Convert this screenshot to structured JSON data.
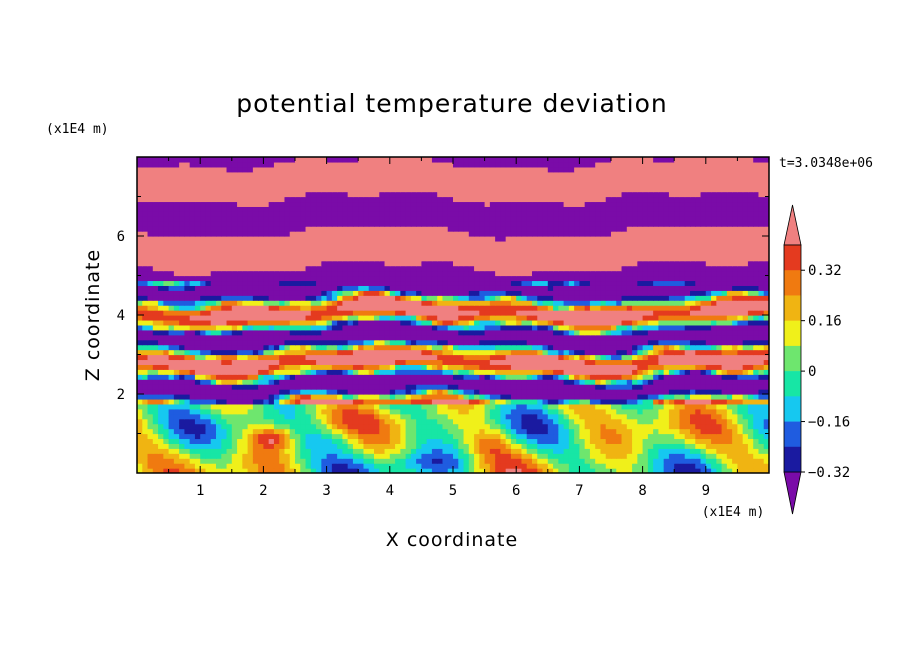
{
  "chart_data": {
    "type": "heatmap",
    "title": "potential temperature deviation",
    "xlabel": "X coordinate",
    "ylabel": "Z coordinate",
    "x_unit": "(x1E4 m)",
    "y_unit": "(x1E4 m)",
    "time_label": "t=3.0348e+06",
    "xlim": [
      0,
      10
    ],
    "ylim": [
      0,
      8
    ],
    "x_ticks": [
      "1",
      "2",
      "3",
      "4",
      "5",
      "6",
      "7",
      "8",
      "9"
    ],
    "y_ticks": [
      "2",
      "4",
      "6"
    ],
    "colorbar": {
      "levels": [
        -0.4,
        -0.32,
        -0.24,
        -0.16,
        -0.08,
        0,
        0.08,
        0.16,
        0.24,
        0.32,
        0.4
      ],
      "labels": [
        "0.32",
        "0.16",
        "0",
        "−0.16",
        "−0.32"
      ],
      "colors": [
        "#7a0ba8",
        "#1a1aa0",
        "#1f5ce0",
        "#16c8f0",
        "#17e6a5",
        "#6ee66e",
        "#f0f01a",
        "#f0b412",
        "#f07a10",
        "#e43a1f",
        "#f08080"
      ]
    },
    "bands": [
      {
        "z": [
          0.0,
          0.5
        ],
        "description": "yellow / green / cyan turbulent mix"
      },
      {
        "z": [
          0.5,
          1.8
        ],
        "description": "cyan / green with blue and red eddies"
      },
      {
        "z": [
          1.8,
          4.9
        ],
        "description": "interleaved purple, pink, blue and orange layers"
      },
      {
        "z": [
          4.9,
          8.0
        ],
        "description": "alternating pink and purple horizontal layers"
      }
    ]
  }
}
